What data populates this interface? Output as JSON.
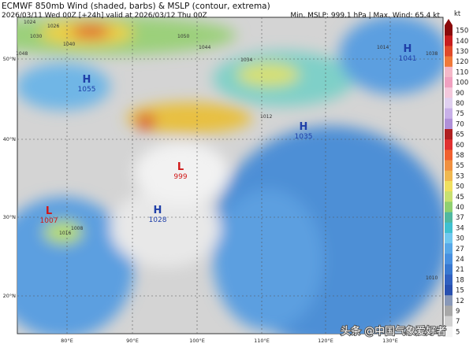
{
  "title": "ECMWF 850mb Wind (shaded, barbs) & MSLP (contour, extrema)",
  "subtitle": "2026/03/11 Wed 00Z [+24h] valid at 2026/03/12 Thu 00Z",
  "stats": "Min. MSLP: 999.1 hPa | Max. Wind: 65.4 kt",
  "colorbar": {
    "unit": "kt",
    "levels": [
      "150",
      "140",
      "130",
      "120",
      "110",
      "100",
      "90",
      "80",
      "75",
      "70",
      "65",
      "60",
      "58",
      "55",
      "53",
      "50",
      "45",
      "40",
      "37",
      "34",
      "30",
      "27",
      "24",
      "21",
      "18",
      "15",
      "12",
      "9",
      "7",
      "5"
    ]
  },
  "lat_labels": [
    "50°N",
    "40°N",
    "30°N",
    "20°N"
  ],
  "lon_labels": [
    "80°E",
    "90°E",
    "100°E",
    "110°E",
    "120°E",
    "130°E"
  ],
  "extrema": [
    {
      "type": "H",
      "value": "1055"
    },
    {
      "type": "H",
      "value": "1035"
    },
    {
      "type": "H",
      "value": "1041"
    },
    {
      "type": "H",
      "value": "1028"
    },
    {
      "type": "L",
      "value": "999"
    },
    {
      "type": "L",
      "value": "1007"
    }
  ],
  "contour_labels": [
    "1024",
    "1026",
    "1030",
    "1040",
    "1048",
    "1050",
    "1044",
    "1034",
    "1014",
    "1012",
    "1008",
    "1016",
    "1038",
    "1010"
  ],
  "watermark": "头条 @中国气象爱好者"
}
